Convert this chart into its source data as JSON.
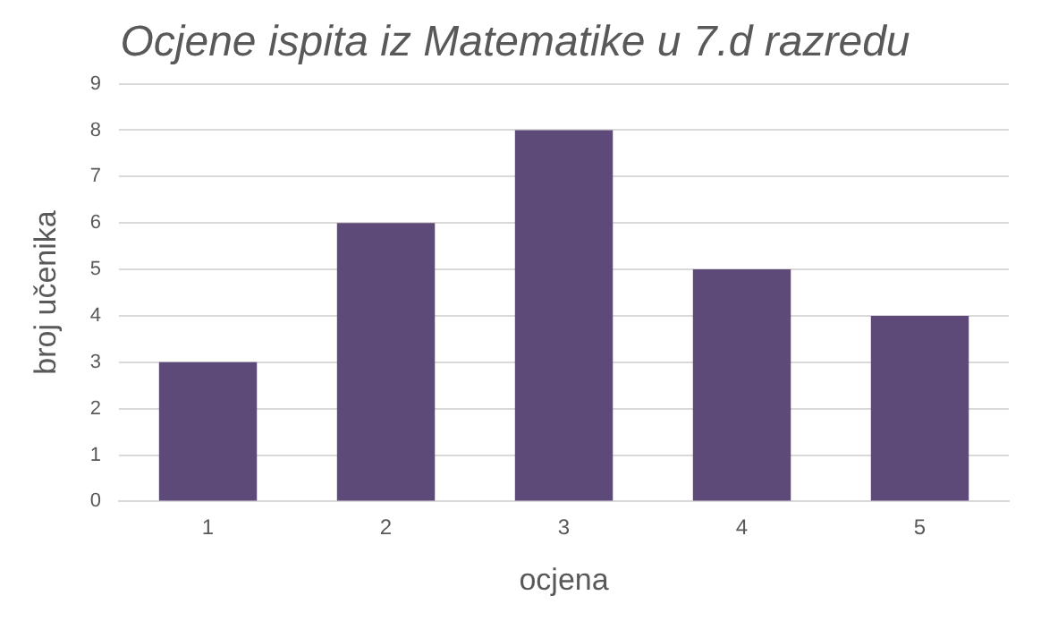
{
  "chart_data": {
    "type": "bar",
    "title": "Ocjene ispita iz Matematike u 7.d razredu",
    "xlabel": "ocjena",
    "ylabel": "broj učenika",
    "categories": [
      "1",
      "2",
      "3",
      "4",
      "5"
    ],
    "values": [
      3,
      6,
      8,
      5,
      4
    ],
    "color": "#5e4a78",
    "ylim": [
      0,
      9
    ],
    "yticks": [
      0,
      1,
      2,
      3,
      4,
      5,
      6,
      7,
      8,
      9
    ],
    "grid": "y",
    "legend": false
  }
}
